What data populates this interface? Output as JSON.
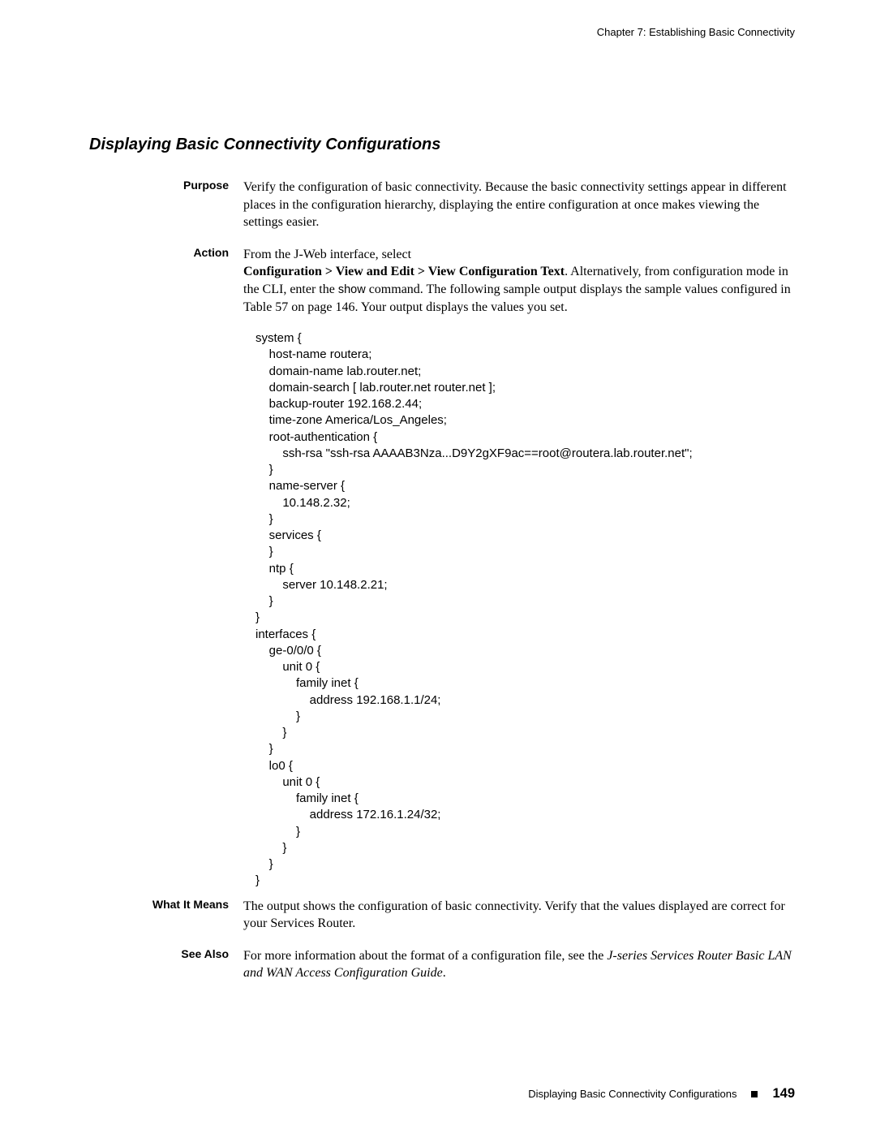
{
  "header": {
    "chapter": "Chapter 7: Establishing Basic Connectivity"
  },
  "section": {
    "title": "Displaying Basic Connectivity Configurations"
  },
  "labels": {
    "purpose": "Purpose",
    "action": "Action",
    "what_it_means": "What It Means",
    "see_also": "See Also"
  },
  "purpose": {
    "text": "Verify the configuration of basic connectivity. Because the basic connectivity settings appear in different places in the configuration hierarchy, displaying the entire configuration at once makes viewing the settings easier."
  },
  "action": {
    "line1": "From the J-Web interface, select",
    "breadcrumb": "Configuration > View and Edit > View Configuration Text",
    "after_breadcrumb": ". Alternatively, from configuration mode in the CLI, enter the ",
    "show_cmd": "show",
    "after_show": " command. The following sample output displays the sample values configured in Table 57 on page 146. Your output displays the values you set."
  },
  "config": "system {\n    host-name routera;\n    domain-name lab.router.net;\n    domain-search [ lab.router.net router.net ];\n    backup-router 192.168.2.44;\n    time-zone America/Los_Angeles;\n    root-authentication {\n        ssh-rsa \"ssh-rsa AAAAB3Nza...D9Y2gXF9ac==root@routera.lab.router.net\";\n    }\n    name-server {\n        10.148.2.32;\n    }\n    services {\n    }\n    ntp {\n        server 10.148.2.21;\n    }\n}\ninterfaces {\n    ge-0/0/0 {\n        unit 0 {\n            family inet {\n                address 192.168.1.1/24;\n            }\n        }\n    }\n    lo0 {\n        unit 0 {\n            family inet {\n                address 172.16.1.24/32;\n            }\n        }\n    }\n}",
  "what_it_means": {
    "text": "The output shows the configuration of basic connectivity. Verify that the values displayed are correct for your Services Router."
  },
  "see_also": {
    "prefix": "For more information about the format of a configuration file, see the ",
    "italic": "J-series Services Router Basic LAN and WAN Access Configuration Guide",
    "suffix": "."
  },
  "footer": {
    "title": "Displaying Basic Connectivity Configurations",
    "page": "149"
  }
}
